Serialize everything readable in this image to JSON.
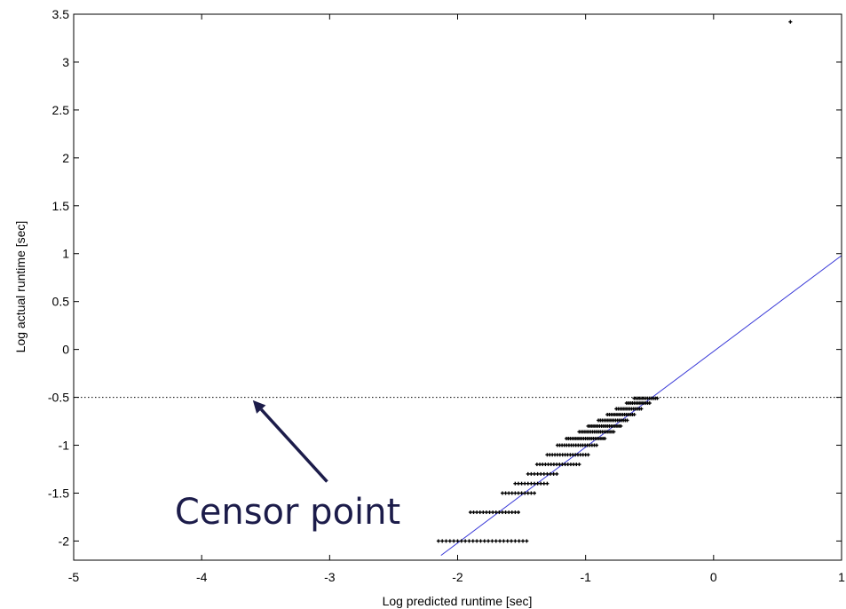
{
  "chart_data": {
    "type": "scatter",
    "xlabel": "Log predicted runtime [sec]",
    "ylabel": "Log actual runtime [sec]",
    "xlim": [
      -5,
      1
    ],
    "ylim": [
      -2.2,
      3.5
    ],
    "xticks": [
      -5,
      -4,
      -3,
      -2,
      -1,
      0,
      1
    ],
    "xtick_labels": [
      "-5",
      "-4",
      "-3",
      "-2",
      "-1",
      "0",
      "1"
    ],
    "yticks": [
      -2,
      -1.5,
      -1,
      -0.5,
      0,
      0.5,
      1,
      1.5,
      2,
      2.5,
      3,
      3.5
    ],
    "ytick_labels": [
      "-2",
      "-1.5",
      "-1",
      "-0.5",
      "0",
      "0.5",
      "1",
      "1.5",
      "2",
      "2.5",
      "3",
      "3.5"
    ],
    "grid": false,
    "marker_color": "#000000",
    "fit_line": {
      "x": [
        -2.13,
        1.0
      ],
      "y": [
        -2.15,
        0.98
      ],
      "color": "#3a3ad8"
    },
    "censor_line": {
      "y": -0.5,
      "style": "dotted",
      "color": "#000000"
    },
    "outlier": {
      "x": 0.6,
      "y": 3.42
    },
    "point_bands": [
      {
        "y": -2.0,
        "x_start": -2.15,
        "x_end": -1.45,
        "step": 0.03
      },
      {
        "y": -1.7,
        "x_start": -1.9,
        "x_end": -1.52,
        "step": 0.025
      },
      {
        "y": -1.5,
        "x_start": -1.65,
        "x_end": -1.38,
        "step": 0.025
      },
      {
        "y": -1.4,
        "x_start": -1.55,
        "x_end": -1.3,
        "step": 0.025
      },
      {
        "y": -1.3,
        "x_start": -1.45,
        "x_end": -1.22,
        "step": 0.025
      },
      {
        "y": -1.2,
        "x_start": -1.38,
        "x_end": -1.05,
        "step": 0.022
      },
      {
        "y": -1.1,
        "x_start": -1.3,
        "x_end": -0.97,
        "step": 0.02
      },
      {
        "y": -1.0,
        "x_start": -1.22,
        "x_end": -0.9,
        "step": 0.018
      },
      {
        "y": -0.93,
        "x_start": -1.15,
        "x_end": -0.85,
        "step": 0.015
      },
      {
        "y": -0.86,
        "x_start": -1.05,
        "x_end": -0.78,
        "step": 0.015
      },
      {
        "y": -0.8,
        "x_start": -0.98,
        "x_end": -0.72,
        "step": 0.015
      },
      {
        "y": -0.74,
        "x_start": -0.9,
        "x_end": -0.67,
        "step": 0.015
      },
      {
        "y": -0.68,
        "x_start": -0.83,
        "x_end": -0.62,
        "step": 0.015
      },
      {
        "y": -0.62,
        "x_start": -0.76,
        "x_end": -0.56,
        "step": 0.015
      },
      {
        "y": -0.56,
        "x_start": -0.68,
        "x_end": -0.5,
        "step": 0.015
      },
      {
        "y": -0.51,
        "x_start": -0.62,
        "x_end": -0.44,
        "step": 0.015
      }
    ],
    "annotation": {
      "text": "Censor point",
      "color": "#1c1c4a",
      "arrow_from": {
        "x": -3.02,
        "y": -1.38
      },
      "arrow_to": {
        "x": -3.6,
        "y": -0.53
      }
    }
  }
}
